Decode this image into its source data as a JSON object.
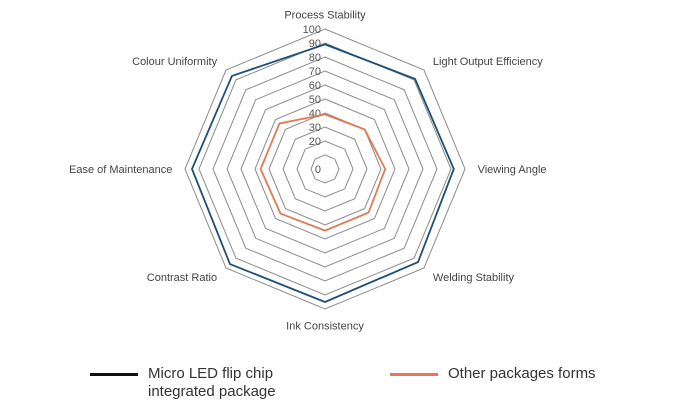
{
  "chart_data": {
    "type": "radar",
    "axes": [
      "Process Stability",
      "Light Output Efficiency",
      "Viewing Angle",
      "Welding Stability",
      "Ink Consistency",
      "Contrast Ratio",
      "Ease of Maintenance",
      "Colour Uniformity"
    ],
    "rlim": [
      0,
      100
    ],
    "ticks": [
      0,
      20,
      30,
      40,
      50,
      60,
      70,
      80,
      90,
      100
    ],
    "grid_ticks": [
      10,
      20,
      30,
      40,
      50,
      60,
      70,
      80,
      90,
      100
    ],
    "series": [
      {
        "name": "Micro LED flip chip integrated package",
        "color": "#1f4e79",
        "legend_color": "#111111",
        "values": [
          89,
          91,
          92,
          94,
          95,
          96,
          95,
          94
        ]
      },
      {
        "name": "Other packages forms",
        "color": "#e07b54",
        "legend_color": "#e07b54",
        "values": [
          39,
          40,
          43,
          44,
          44,
          45,
          46,
          46
        ]
      }
    ],
    "legend_position": "bottom",
    "grid": true
  },
  "legend": {
    "series_0": "Micro LED flip chip integrated package",
    "series_1": "Other packages forms"
  }
}
